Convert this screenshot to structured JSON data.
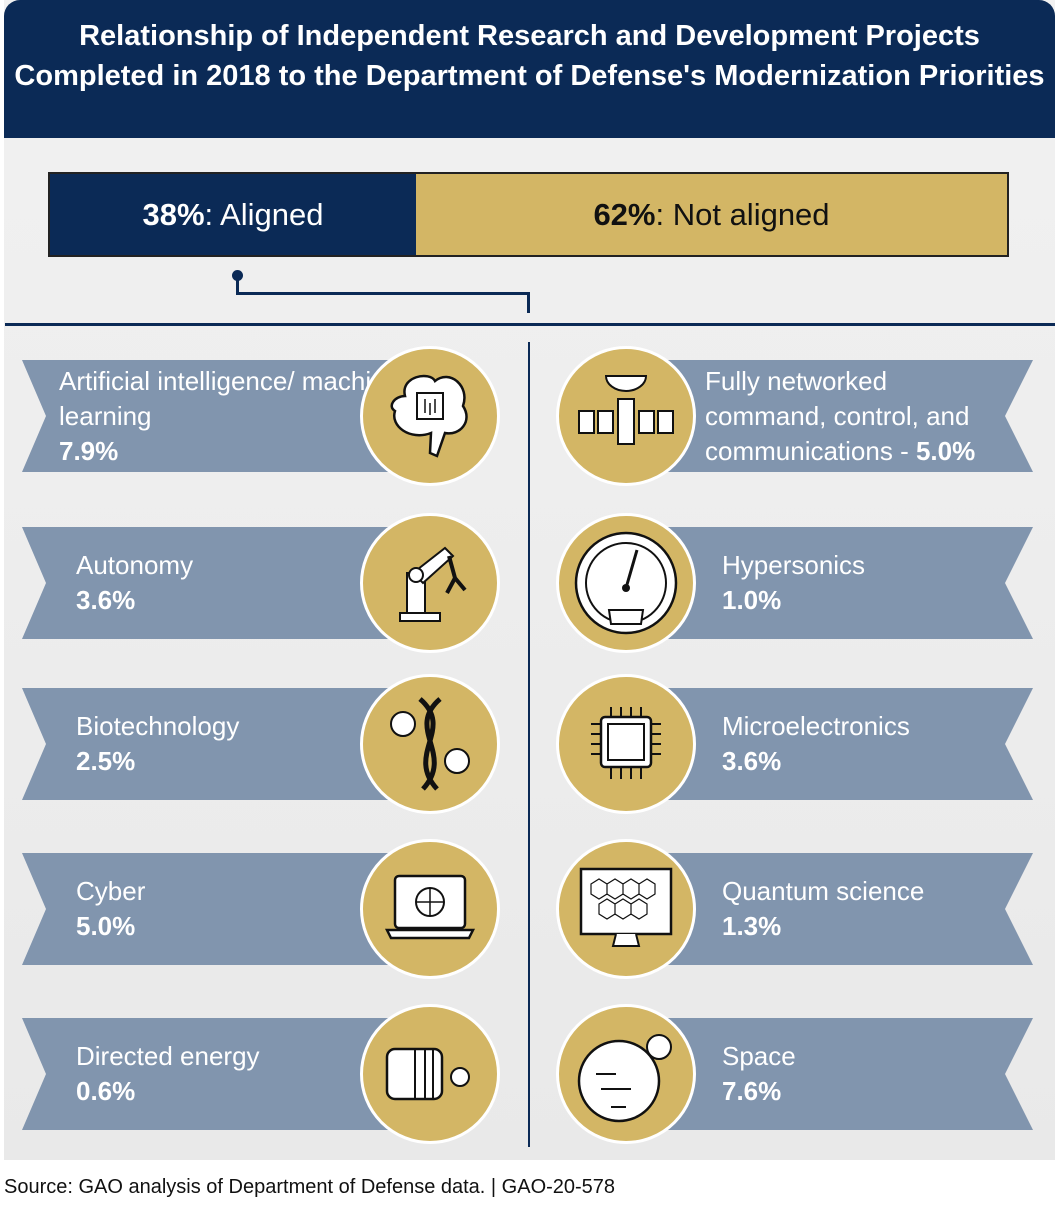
{
  "title": "Relationship of Independent Research and Development Projects Completed in 2018 to the Department of Defense's Modernization Priorities",
  "bar": {
    "aligned": {
      "pct": "38%",
      "label": ": Aligned",
      "value": 38
    },
    "not_aligned": {
      "pct": "62%",
      "label": ": Not aligned",
      "value": 62
    }
  },
  "colors": {
    "navy": "#0b2a56",
    "gold": "#d3b665",
    "slate": "#8195ae"
  },
  "left": [
    {
      "label": "Artificial intelligence/ machine learning",
      "pct": "7.9%",
      "icon": "brain-chip-icon"
    },
    {
      "label": "Autonomy",
      "pct": "3.6%",
      "icon": "robot-arm-icon"
    },
    {
      "label": "Biotechnology",
      "pct": "2.5%",
      "icon": "dna-gears-icon"
    },
    {
      "label": "Cyber",
      "pct": "5.0%",
      "icon": "laptop-globe-icon"
    },
    {
      "label": "Directed energy",
      "pct": "0.6%",
      "icon": "laser-icon"
    }
  ],
  "right": [
    {
      "label": "Fully networked command, control, and communications - ",
      "pct": "5.0%",
      "icon": "satellite-icon"
    },
    {
      "label": "Hypersonics",
      "pct": "1.0%",
      "icon": "speedometer-icon"
    },
    {
      "label": "Microelectronics",
      "pct": "3.6%",
      "icon": "microchip-icon"
    },
    {
      "label": "Quantum science",
      "pct": "1.3%",
      "icon": "monitor-lattice-icon"
    },
    {
      "label": "Space",
      "pct": "7.6%",
      "icon": "planet-moon-icon"
    }
  ],
  "footer": "Source: GAO analysis of Department of Defense data.  |  GAO-20-578"
}
